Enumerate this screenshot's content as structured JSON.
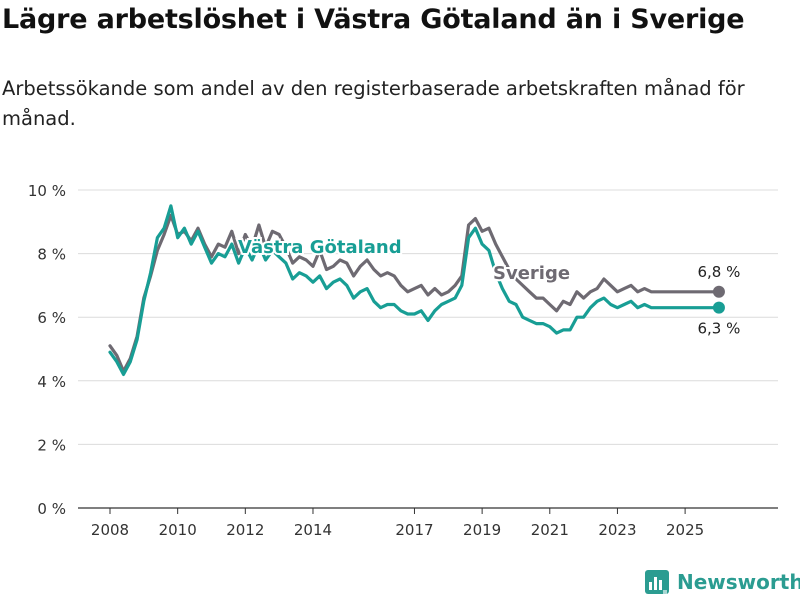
{
  "title": "Lägre arbetslöshet i Västra Götaland än i Sverige",
  "subtitle": "Arbetssökande som andel av den registerbaserade arbetskraften månad för månad.",
  "brand": {
    "name": "Newsworthy",
    "icon": "newsworthy-logo-icon",
    "color": "#2b9c91"
  },
  "chart_data": {
    "type": "line",
    "title": "Lägre arbetslöshet i Västra Götaland än i Sverige",
    "xlabel": "",
    "ylabel": "",
    "xlim": [
      2008.0,
      2026.8
    ],
    "ylim": [
      0,
      10
    ],
    "grid": true,
    "x_ticks": [
      2008,
      2010,
      2012,
      2014,
      2017,
      2019,
      2021,
      2023,
      2025
    ],
    "x_tick_labels": [
      "2008",
      "2010",
      "2012",
      "2014",
      "2017",
      "2019",
      "2021",
      "2023",
      "2025"
    ],
    "y_ticks": [
      0,
      2,
      4,
      6,
      8,
      10
    ],
    "y_tick_labels": [
      "0 %",
      "2 %",
      "4 %",
      "6 %",
      "8 %",
      "10 %"
    ],
    "series": [
      {
        "name": "Sverige",
        "label": "Sverige",
        "color": "#6e6a72",
        "end_label": "6,8 %",
        "x": [
          2008.0,
          2008.2,
          2008.4,
          2008.6,
          2008.8,
          2009.0,
          2009.2,
          2009.4,
          2009.6,
          2009.8,
          2010.0,
          2010.2,
          2010.4,
          2010.6,
          2010.8,
          2011.0,
          2011.2,
          2011.4,
          2011.6,
          2011.8,
          2012.0,
          2012.2,
          2012.4,
          2012.6,
          2012.8,
          2013.0,
          2013.2,
          2013.4,
          2013.6,
          2013.8,
          2014.0,
          2014.2,
          2014.4,
          2014.6,
          2014.8,
          2015.0,
          2015.2,
          2015.4,
          2015.6,
          2015.8,
          2016.0,
          2016.2,
          2016.4,
          2016.6,
          2016.8,
          2017.0,
          2017.2,
          2017.4,
          2017.6,
          2017.8,
          2018.0,
          2018.2,
          2018.4,
          2018.6,
          2018.8,
          2019.0,
          2019.2,
          2019.4,
          2019.6,
          2019.8,
          2020.0,
          2020.2,
          2020.4,
          2020.6,
          2020.8,
          2021.0,
          2021.2,
          2021.4,
          2021.6,
          2021.8,
          2022.0,
          2022.2,
          2022.4,
          2022.6,
          2022.8,
          2023.0,
          2023.2,
          2023.4,
          2023.6,
          2023.8,
          2024.0,
          2024.2,
          2024.4,
          2024.6,
          2024.8,
          2025.0,
          2025.2,
          2025.4,
          2025.6,
          2025.8,
          2026.0
        ],
        "values": [
          5.1,
          4.8,
          4.3,
          4.7,
          5.4,
          6.6,
          7.3,
          8.1,
          8.6,
          9.2,
          8.6,
          8.7,
          8.4,
          8.8,
          8.3,
          7.9,
          8.3,
          8.2,
          8.7,
          8.0,
          8.6,
          8.2,
          8.9,
          8.2,
          8.7,
          8.6,
          8.2,
          7.7,
          7.9,
          7.8,
          7.6,
          8.1,
          7.5,
          7.6,
          7.8,
          7.7,
          7.3,
          7.6,
          7.8,
          7.5,
          7.3,
          7.4,
          7.3,
          7.0,
          6.8,
          6.9,
          7.0,
          6.7,
          6.9,
          6.7,
          6.8,
          7.0,
          7.3,
          8.9,
          9.1,
          8.7,
          8.8,
          8.3,
          7.9,
          7.5,
          7.2,
          7.0,
          6.8,
          6.6,
          6.6,
          6.4,
          6.2,
          6.5,
          6.4,
          6.8,
          6.6,
          6.8,
          6.9,
          7.2,
          7.0,
          6.8,
          6.9,
          7.0,
          6.8,
          6.9,
          6.8,
          6.8,
          6.8,
          6.8,
          6.8,
          6.8,
          6.8,
          6.8,
          6.8,
          6.8,
          6.8
        ]
      },
      {
        "name": "Västra Götaland",
        "label": "Västra Götaland",
        "color": "#189e95",
        "end_label": "6,3 %",
        "x": [
          2008.0,
          2008.2,
          2008.4,
          2008.6,
          2008.8,
          2009.0,
          2009.2,
          2009.4,
          2009.6,
          2009.8,
          2010.0,
          2010.2,
          2010.4,
          2010.6,
          2010.8,
          2011.0,
          2011.2,
          2011.4,
          2011.6,
          2011.8,
          2012.0,
          2012.2,
          2012.4,
          2012.6,
          2012.8,
          2013.0,
          2013.2,
          2013.4,
          2013.6,
          2013.8,
          2014.0,
          2014.2,
          2014.4,
          2014.6,
          2014.8,
          2015.0,
          2015.2,
          2015.4,
          2015.6,
          2015.8,
          2016.0,
          2016.2,
          2016.4,
          2016.6,
          2016.8,
          2017.0,
          2017.2,
          2017.4,
          2017.6,
          2017.8,
          2018.0,
          2018.2,
          2018.4,
          2018.6,
          2018.8,
          2019.0,
          2019.2,
          2019.4,
          2019.6,
          2019.8,
          2020.0,
          2020.2,
          2020.4,
          2020.6,
          2020.8,
          2021.0,
          2021.2,
          2021.4,
          2021.6,
          2021.8,
          2022.0,
          2022.2,
          2022.4,
          2022.6,
          2022.8,
          2023.0,
          2023.2,
          2023.4,
          2023.6,
          2023.8,
          2024.0,
          2024.2,
          2024.4,
          2024.6,
          2024.8,
          2025.0,
          2025.2,
          2025.4,
          2025.6,
          2025.8,
          2026.0
        ],
        "values": [
          4.9,
          4.6,
          4.2,
          4.6,
          5.3,
          6.5,
          7.4,
          8.5,
          8.8,
          9.5,
          8.5,
          8.8,
          8.3,
          8.7,
          8.2,
          7.7,
          8.0,
          7.9,
          8.3,
          7.7,
          8.2,
          7.8,
          8.3,
          7.8,
          8.1,
          7.9,
          7.7,
          7.2,
          7.4,
          7.3,
          7.1,
          7.3,
          6.9,
          7.1,
          7.2,
          7.0,
          6.6,
          6.8,
          6.9,
          6.5,
          6.3,
          6.4,
          6.4,
          6.2,
          6.1,
          6.1,
          6.2,
          5.9,
          6.2,
          6.4,
          6.5,
          6.6,
          7.0,
          8.5,
          8.8,
          8.3,
          8.1,
          7.4,
          6.9,
          6.5,
          6.4,
          6.0,
          5.9,
          5.8,
          5.8,
          5.7,
          5.5,
          5.6,
          5.6,
          6.0,
          6.0,
          6.3,
          6.5,
          6.6,
          6.4,
          6.3,
          6.4,
          6.5,
          6.3,
          6.4,
          6.3,
          6.3,
          6.3,
          6.3,
          6.3,
          6.3,
          6.3,
          6.3,
          6.3,
          6.3,
          6.3
        ]
      }
    ]
  }
}
